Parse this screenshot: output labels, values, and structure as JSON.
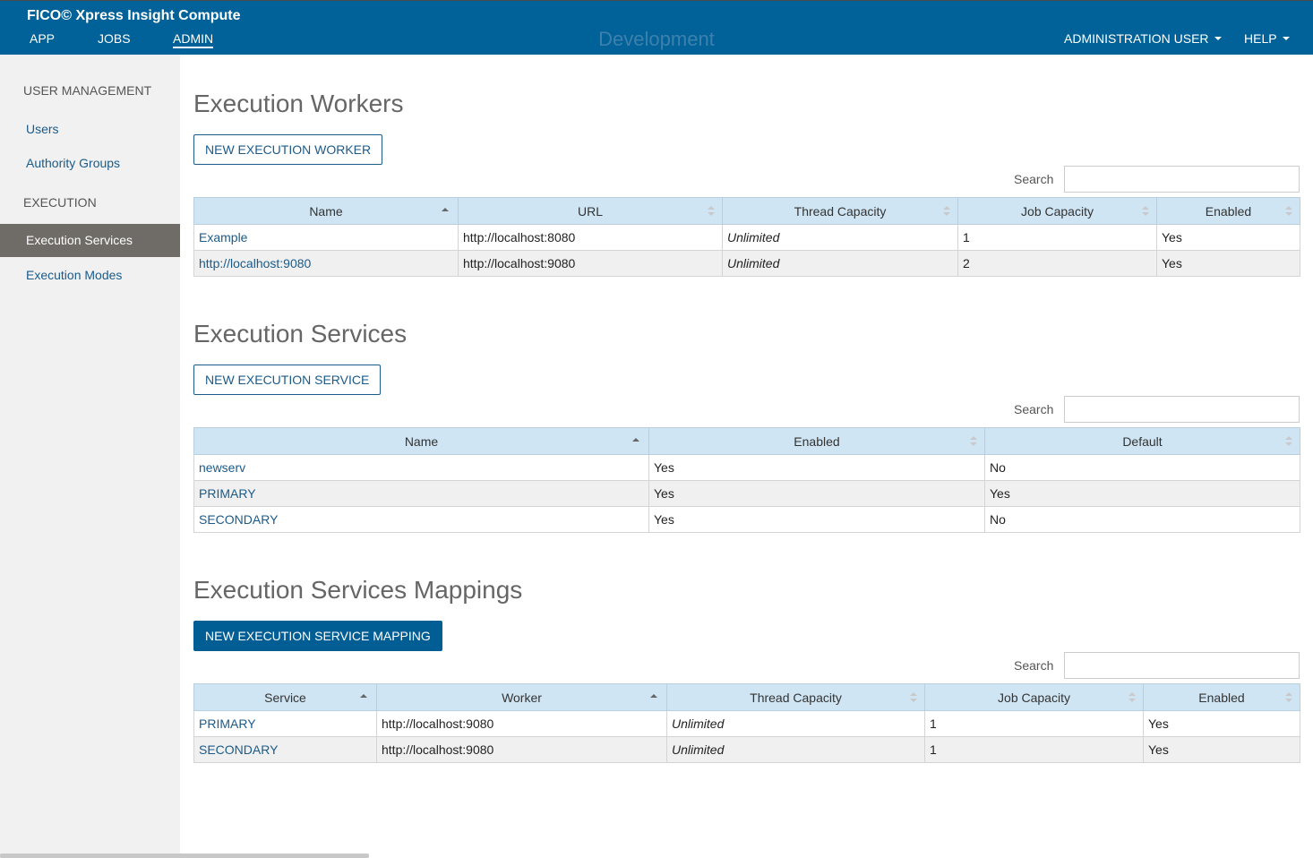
{
  "header": {
    "app_title": "FICO© Xpress Insight Compute",
    "nav": [
      "APP",
      "JOBS",
      "ADMIN"
    ],
    "environment": "Development",
    "user_menu": "ADMINISTRATION USER",
    "help_menu": "HELP"
  },
  "sidebar": {
    "user_management_heading": "USER MANAGEMENT",
    "users": "Users",
    "authority_groups": "Authority Groups",
    "execution_heading": "EXECUTION",
    "execution_services": "Execution Services",
    "execution_modes": "Execution Modes"
  },
  "workers": {
    "title": "Execution Workers",
    "button": "NEW EXECUTION WORKER",
    "search_label": "Search",
    "columns": [
      "Name",
      "URL",
      "Thread Capacity",
      "Job Capacity",
      "Enabled"
    ],
    "rows": [
      [
        "Example",
        "http://localhost:8080",
        "Unlimited",
        "1",
        "Yes"
      ],
      [
        "http://localhost:9080",
        "http://localhost:9080",
        "Unlimited",
        "2",
        "Yes"
      ]
    ]
  },
  "services": {
    "title": "Execution Services",
    "button": "NEW EXECUTION SERVICE",
    "search_label": "Search",
    "columns": [
      "Name",
      "Enabled",
      "Default"
    ],
    "rows": [
      [
        "newserv",
        "Yes",
        "No"
      ],
      [
        "PRIMARY",
        "Yes",
        "Yes"
      ],
      [
        "SECONDARY",
        "Yes",
        "No"
      ]
    ]
  },
  "mappings": {
    "title": "Execution Services Mappings",
    "button": "NEW EXECUTION SERVICE MAPPING",
    "search_label": "Search",
    "columns": [
      "Service",
      "Worker",
      "Thread Capacity",
      "Job Capacity",
      "Enabled"
    ],
    "rows": [
      [
        "PRIMARY",
        "http://localhost:9080",
        "Unlimited",
        "1",
        "Yes"
      ],
      [
        "SECONDARY",
        "http://localhost:9080",
        "Unlimited",
        "1",
        "Yes"
      ]
    ]
  }
}
